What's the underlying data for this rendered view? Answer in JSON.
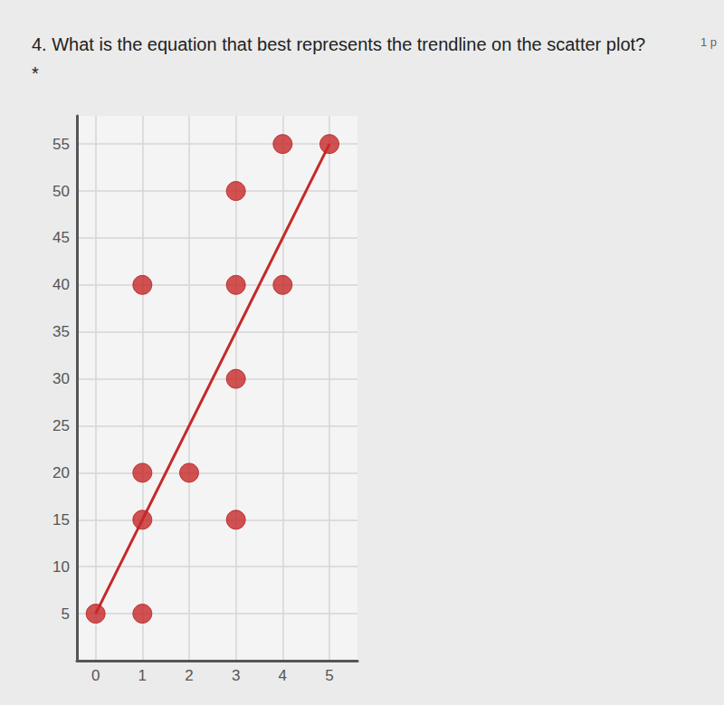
{
  "chart_data": {
    "type": "scatter",
    "title": "4. What is the equation that best represents the trendline on the scatter plot? *",
    "annotations": [
      "1 p"
    ],
    "x": [
      0,
      1,
      1,
      1,
      1,
      2,
      3,
      3,
      3,
      3,
      4,
      4,
      5
    ],
    "values": [
      5,
      5,
      15,
      20,
      40,
      20,
      15,
      30,
      40,
      50,
      40,
      55,
      55
    ],
    "color": "#c62828",
    "marker": "circle",
    "trendline": {
      "type": "line",
      "x": [
        0,
        5
      ],
      "values": [
        5,
        55
      ],
      "color": "#c62828"
    },
    "xlim": [
      -0.4,
      5.6
    ],
    "xticks": [
      0,
      1,
      2,
      3,
      4,
      5
    ],
    "ylim": [
      0,
      58
    ],
    "yticks": [
      5,
      10,
      15,
      20,
      25,
      30,
      35,
      40,
      45,
      50,
      55
    ],
    "grid": true
  }
}
